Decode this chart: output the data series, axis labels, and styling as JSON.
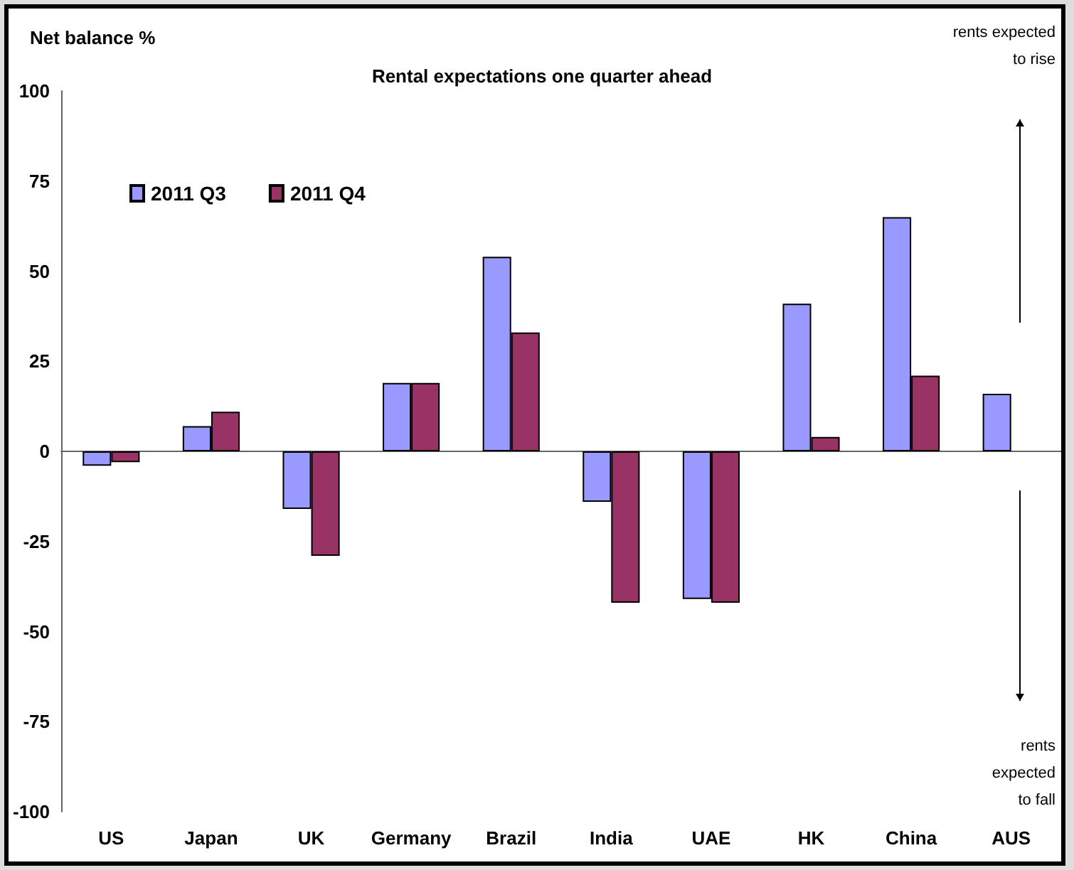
{
  "chart_data": {
    "type": "bar",
    "title": "Rental expectations one quarter ahead",
    "ylabel": "Net balance %",
    "categories": [
      "US",
      "Japan",
      "UK",
      "Germany",
      "Brazil",
      "India",
      "UAE",
      "HK",
      "China",
      "AUS"
    ],
    "series": [
      {
        "name": "2011 Q3",
        "color": "#9999ff",
        "values": [
          -4,
          7,
          -16,
          19,
          54,
          -14,
          -41,
          41,
          65,
          16
        ]
      },
      {
        "name": "2011 Q4",
        "color": "#993366",
        "values": [
          -3,
          11,
          -29,
          19,
          33,
          -42,
          -42,
          4,
          21,
          null
        ]
      }
    ],
    "ylim": [
      -100,
      100
    ],
    "yticks": [
      -100,
      -75,
      -50,
      -25,
      0,
      25,
      50,
      75,
      100
    ],
    "legend": "top left",
    "annotations": [
      "rents expected\nto rise",
      "rents\nexpected\nto fall"
    ]
  }
}
